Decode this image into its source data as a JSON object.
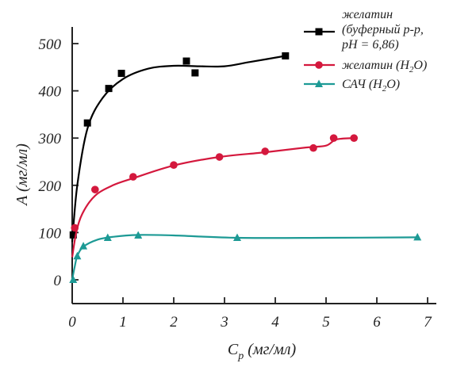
{
  "chart_data": {
    "type": "line",
    "xlabel_main": "C",
    "xlabel_sub": "p",
    "xlabel_unit": " (мг/мл)",
    "ylabel": "A (мг/мл)",
    "xlim": [
      0,
      7
    ],
    "ylim": [
      0,
      500
    ],
    "xticks": [
      0,
      1,
      2,
      3,
      4,
      5,
      6,
      7
    ],
    "yticks": [
      0,
      100,
      200,
      300,
      400,
      500
    ],
    "grid": false,
    "legend_position": "top-right",
    "series": [
      {
        "name_lines": [
          "желатин",
          "(буферный р-р,",
          "рН = 6,86)"
        ],
        "marker": "square",
        "color": "#000000",
        "points": [
          [
            0.02,
            95
          ],
          [
            0.3,
            332
          ],
          [
            0.72,
            405
          ],
          [
            0.97,
            437
          ],
          [
            2.25,
            463
          ],
          [
            2.42,
            438
          ],
          [
            4.2,
            474
          ]
        ],
        "curve": [
          [
            0,
            80
          ],
          [
            0.1,
            200
          ],
          [
            0.3,
            320
          ],
          [
            0.6,
            385
          ],
          [
            1.0,
            425
          ],
          [
            1.5,
            447
          ],
          [
            2.0,
            453
          ],
          [
            2.5,
            452
          ],
          [
            3.0,
            452
          ],
          [
            3.5,
            461
          ],
          [
            4.2,
            474
          ]
        ]
      },
      {
        "name_main": "желатин (H",
        "name_sub": "2",
        "name_tail": "O)",
        "marker": "circle",
        "color": "#d4183d",
        "points": [
          [
            0.05,
            110
          ],
          [
            0.45,
            191
          ],
          [
            1.2,
            218
          ],
          [
            2.0,
            243
          ],
          [
            2.9,
            260
          ],
          [
            3.8,
            272
          ],
          [
            4.75,
            279
          ],
          [
            5.15,
            300
          ],
          [
            5.55,
            300
          ]
        ],
        "curve": [
          [
            0,
            48
          ],
          [
            0.08,
            100
          ],
          [
            0.2,
            140
          ],
          [
            0.45,
            178
          ],
          [
            0.8,
            200
          ],
          [
            1.2,
            215
          ],
          [
            2.0,
            242
          ],
          [
            2.9,
            260
          ],
          [
            3.8,
            270
          ],
          [
            4.6,
            280
          ],
          [
            5.0,
            284
          ],
          [
            5.2,
            297
          ],
          [
            5.55,
            300
          ]
        ]
      },
      {
        "name_main": "САЧ (H",
        "name_sub": "2",
        "name_tail": "O)",
        "marker": "triangle",
        "color": "#1d9a95",
        "points": [
          [
            0.02,
            0
          ],
          [
            0.1,
            50
          ],
          [
            0.22,
            71
          ],
          [
            0.7,
            89
          ],
          [
            1.3,
            94
          ],
          [
            3.25,
            89
          ],
          [
            6.8,
            90
          ]
        ],
        "curve": [
          [
            0,
            0
          ],
          [
            0.05,
            28
          ],
          [
            0.1,
            50
          ],
          [
            0.22,
            70
          ],
          [
            0.5,
            85
          ],
          [
            0.8,
            91
          ],
          [
            1.3,
            95
          ],
          [
            2.0,
            94
          ],
          [
            3.25,
            89
          ],
          [
            5.0,
            89
          ],
          [
            6.8,
            90
          ]
        ]
      }
    ]
  }
}
